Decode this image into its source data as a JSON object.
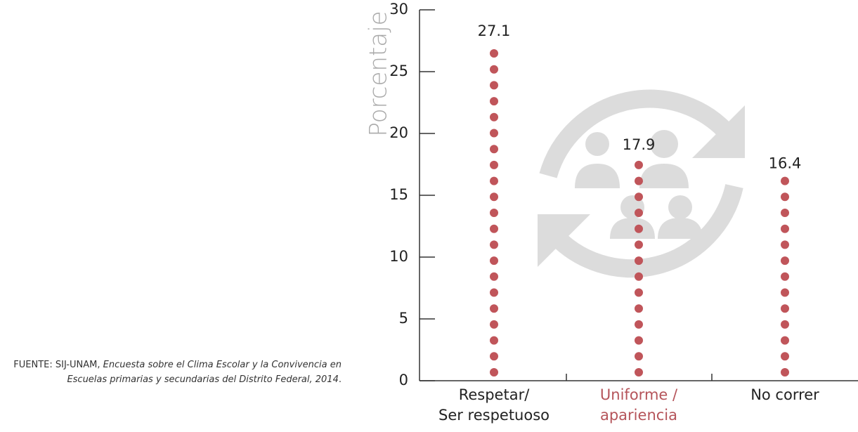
{
  "chart_data": {
    "type": "dot-column",
    "y_label": "Porcentaje",
    "categories": [
      "Respetar/\nSer respetuoso",
      "Uniforme /\napariencia",
      "No correr"
    ],
    "category_label_colors": [
      "#222222",
      "#b5545a",
      "#222222"
    ],
    "values": [
      27.1,
      17.9,
      16.4
    ],
    "color": "#c0555a",
    "ylim": [
      0,
      30
    ],
    "yticks": [
      0,
      5,
      10,
      15,
      20,
      25,
      30
    ],
    "source_prefix": "FUENTE: SIJ-UNAM, ",
    "source_title": "Encuesta sobre el Clima Escolar y la Convivencia en Escuelas primarias y secundarias del Distrito Federal, 2014",
    "source_suffix": "."
  }
}
